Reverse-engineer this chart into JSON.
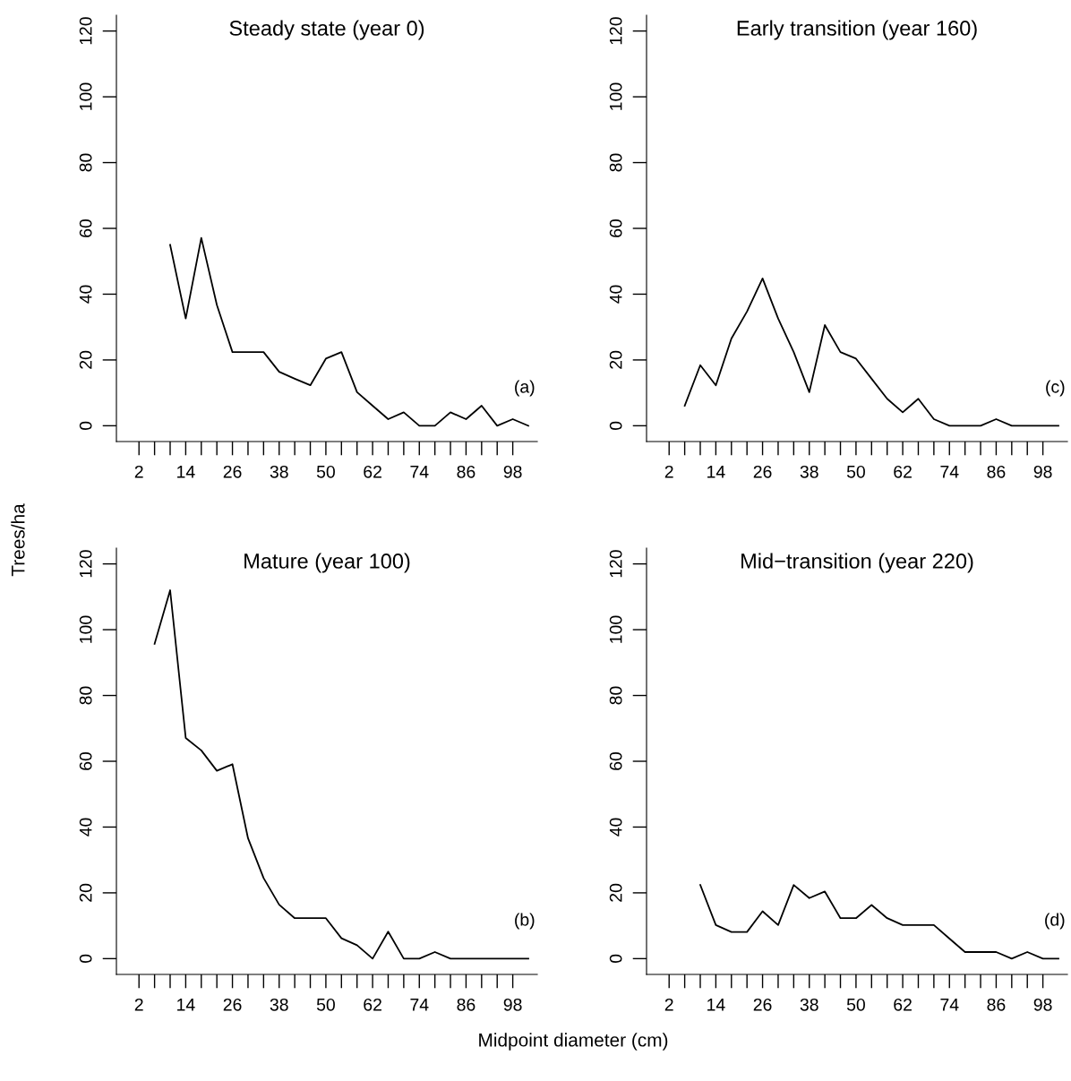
{
  "chart_data": [
    {
      "type": "line",
      "title": "Steady state (year 0)",
      "xlabel": "Midpoint diameter (cm)",
      "ylabel": "Trees/ha",
      "annotations": [
        "(a)"
      ],
      "xlim": [
        -3.8,
        104.3
      ],
      "ylim": [
        -4.8,
        124.8
      ],
      "xticks": [
        2,
        {
          "value": 6,
          "label": null
        },
        {
          "value": 10,
          "label": null
        },
        14,
        {
          "value": 18,
          "label": null
        },
        {
          "value": 22,
          "label": null
        },
        26,
        {
          "value": 30,
          "label": null
        },
        {
          "value": 34,
          "label": null
        },
        38,
        {
          "value": 42,
          "label": null
        },
        {
          "value": 46,
          "label": null
        },
        50,
        {
          "value": 54,
          "label": null
        },
        {
          "value": 58,
          "label": null
        },
        62,
        {
          "value": 66,
          "label": null
        },
        {
          "value": 70,
          "label": null
        },
        74,
        {
          "value": 78,
          "label": null
        },
        {
          "value": 82,
          "label": null
        },
        86,
        {
          "value": 90,
          "label": null
        },
        {
          "value": 94,
          "label": null
        },
        98
      ],
      "yticks": [
        0,
        20,
        40,
        60,
        80,
        100,
        120
      ],
      "grid": false,
      "marker": "none",
      "line_style": "solid",
      "x": [
        10,
        14,
        18,
        22,
        26,
        30,
        34,
        38,
        42,
        46,
        50,
        54,
        58,
        62,
        66,
        70,
        74,
        78,
        82,
        86,
        90,
        94,
        98,
        102
      ],
      "series": [
        {
          "color": "#000000",
          "values": [
            55,
            32.6,
            57.1,
            36.7,
            22.4,
            22.4,
            22.4,
            16.4,
            14.3,
            12.3,
            20.4,
            22.4,
            10.2,
            6.1,
            2,
            4.1,
            0,
            0,
            4.1,
            2,
            6.1,
            0,
            2,
            0
          ]
        }
      ]
    },
    {
      "type": "line",
      "title": "Early transition (year 160)",
      "annotations": [
        "(c)"
      ],
      "xlim": [
        -3.8,
        104.3
      ],
      "ylim": [
        -4.8,
        124.8
      ],
      "xticks": [
        2,
        {
          "value": 6,
          "label": null
        },
        {
          "value": 10,
          "label": null
        },
        14,
        {
          "value": 18,
          "label": null
        },
        {
          "value": 22,
          "label": null
        },
        26,
        {
          "value": 30,
          "label": null
        },
        {
          "value": 34,
          "label": null
        },
        38,
        {
          "value": 42,
          "label": null
        },
        {
          "value": 46,
          "label": null
        },
        50,
        {
          "value": 54,
          "label": null
        },
        {
          "value": 58,
          "label": null
        },
        62,
        {
          "value": 66,
          "label": null
        },
        {
          "value": 70,
          "label": null
        },
        74,
        {
          "value": 78,
          "label": null
        },
        {
          "value": 82,
          "label": null
        },
        86,
        {
          "value": 90,
          "label": null
        },
        {
          "value": 94,
          "label": null
        },
        98
      ],
      "yticks": [
        0,
        20,
        40,
        60,
        80,
        100,
        120
      ],
      "grid": false,
      "marker": "none",
      "line_style": "solid",
      "x": [
        6,
        10,
        14,
        18,
        22,
        26,
        30,
        34,
        38,
        42,
        46,
        50,
        54,
        58,
        62,
        66,
        70,
        74,
        78,
        82,
        86,
        90,
        94,
        98,
        102
      ],
      "series": [
        {
          "color": "#000000",
          "values": [
            6.1,
            18.4,
            12.3,
            26.5,
            34.7,
            44.8,
            32.6,
            22.4,
            10.2,
            30.6,
            22.4,
            20.4,
            14.3,
            8.2,
            4.1,
            8.2,
            2,
            0,
            0,
            0,
            2,
            0,
            0,
            0,
            0
          ]
        }
      ]
    },
    {
      "type": "line",
      "title": "Mature (year 100)",
      "annotations": [
        "(b)"
      ],
      "xlim": [
        -3.8,
        104.3
      ],
      "ylim": [
        -4.8,
        124.8
      ],
      "xticks": [
        2,
        {
          "value": 6,
          "label": null
        },
        {
          "value": 10,
          "label": null
        },
        14,
        {
          "value": 18,
          "label": null
        },
        {
          "value": 22,
          "label": null
        },
        26,
        {
          "value": 30,
          "label": null
        },
        {
          "value": 34,
          "label": null
        },
        38,
        {
          "value": 42,
          "label": null
        },
        {
          "value": 46,
          "label": null
        },
        50,
        {
          "value": 54,
          "label": null
        },
        {
          "value": 58,
          "label": null
        },
        62,
        {
          "value": 66,
          "label": null
        },
        {
          "value": 70,
          "label": null
        },
        74,
        {
          "value": 78,
          "label": null
        },
        {
          "value": 82,
          "label": null
        },
        86,
        {
          "value": 90,
          "label": null
        },
        {
          "value": 94,
          "label": null
        },
        98
      ],
      "yticks": [
        0,
        20,
        40,
        60,
        80,
        100,
        120
      ],
      "grid": false,
      "marker": "none",
      "line_style": "solid",
      "x": [
        6,
        10,
        14,
        18,
        22,
        26,
        30,
        34,
        38,
        42,
        46,
        50,
        54,
        58,
        62,
        66,
        70,
        74,
        78,
        82,
        86,
        90,
        94,
        98,
        102
      ],
      "series": [
        {
          "color": "#000000",
          "values": [
            95.7,
            112,
            67.1,
            63.3,
            57.1,
            59.1,
            36.6,
            24.5,
            16.4,
            12.3,
            12.3,
            12.3,
            6.2,
            4.1,
            0,
            8.2,
            0,
            0,
            2,
            0,
            0,
            0,
            0,
            0,
            0
          ]
        }
      ]
    },
    {
      "type": "line",
      "title": "Mid−transition (year 220)",
      "annotations": [
        "(d)"
      ],
      "xlim": [
        -3.8,
        104.3
      ],
      "ylim": [
        -4.8,
        124.8
      ],
      "xticks": [
        2,
        {
          "value": 6,
          "label": null
        },
        {
          "value": 10,
          "label": null
        },
        14,
        {
          "value": 18,
          "label": null
        },
        {
          "value": 22,
          "label": null
        },
        26,
        {
          "value": 30,
          "label": null
        },
        {
          "value": 34,
          "label": null
        },
        38,
        {
          "value": 42,
          "label": null
        },
        {
          "value": 46,
          "label": null
        },
        50,
        {
          "value": 54,
          "label": null
        },
        {
          "value": 58,
          "label": null
        },
        62,
        {
          "value": 66,
          "label": null
        },
        {
          "value": 70,
          "label": null
        },
        74,
        {
          "value": 78,
          "label": null
        },
        {
          "value": 82,
          "label": null
        },
        86,
        {
          "value": 90,
          "label": null
        },
        {
          "value": 94,
          "label": null
        },
        98
      ],
      "yticks": [
        0,
        20,
        40,
        60,
        80,
        100,
        120
      ],
      "grid": false,
      "marker": "none",
      "line_style": "solid",
      "x": [
        10,
        14,
        18,
        22,
        26,
        30,
        34,
        38,
        42,
        46,
        50,
        54,
        58,
        62,
        66,
        70,
        74,
        78,
        82,
        86,
        90,
        94,
        98,
        102
      ],
      "series": [
        {
          "color": "#000000",
          "values": [
            22.4,
            10.2,
            8.1,
            8.1,
            14.4,
            10.2,
            22.4,
            18.4,
            20.4,
            12.3,
            12.3,
            16.3,
            12.3,
            10.2,
            10.2,
            10.2,
            6.1,
            2,
            2,
            2,
            0,
            2,
            0,
            0
          ]
        }
      ]
    }
  ]
}
